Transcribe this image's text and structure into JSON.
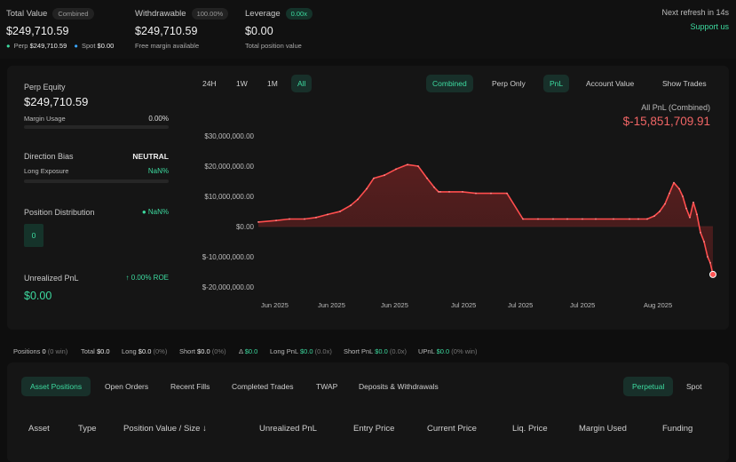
{
  "header": {
    "total_value": {
      "label": "Total Value",
      "pill": "Combined",
      "value": "$249,710.59",
      "perp_label": "Perp",
      "perp_value": "$249,710.59",
      "spot_label": "Spot",
      "spot_value": "$0.00"
    },
    "withdrawable": {
      "label": "Withdrawable",
      "pill": "100.00%",
      "value": "$249,710.59",
      "sub": "Free margin available"
    },
    "leverage": {
      "label": "Leverage",
      "pill": "0.00x",
      "value": "$0.00",
      "sub": "Total position value"
    },
    "refresh": "Next refresh in 14s",
    "support": "Support us"
  },
  "left_panel": {
    "perp_equity_label": "Perp Equity",
    "perp_equity_value": "$249,710.59",
    "margin_usage_label": "Margin Usage",
    "margin_usage_value": "0.00%",
    "direction_bias_label": "Direction Bias",
    "direction_bias_value": "NEUTRAL",
    "long_exposure_label": "Long Exposure",
    "long_exposure_value": "NaN%",
    "position_distribution_label": "Position Distribution",
    "position_distribution_value": "NaN%",
    "position_count": "0",
    "unrealized_pnl_label": "Unrealized PnL",
    "roe": "↑ 0.00% ROE",
    "unrealized_pnl_value": "$0.00"
  },
  "range_tabs": [
    "24H",
    "1W",
    "1M",
    "All"
  ],
  "view_tabs": [
    "Combined",
    "Perp Only"
  ],
  "metric_tabs": [
    "PnL",
    "Account Value",
    "Show Trades"
  ],
  "pnl_summary": {
    "label": "All PnL (Combined)",
    "value": "$-15,851,709.91"
  },
  "chart_data": {
    "type": "area",
    "title": "",
    "ylim": [
      -20000000,
      30000000
    ],
    "y_ticks": [
      "$30,000,000.00",
      "$20,000,000.00",
      "$10,000,000.00",
      "$0.00",
      "$-10,000,000.00",
      "$-20,000,000.00"
    ],
    "x_ticks": [
      "Jun 2025",
      "Jun 2025",
      "Jun 2025",
      "Jul 2025",
      "Jul 2025",
      "Jul 2025",
      "Aug 2025"
    ],
    "x": [
      0,
      20,
      35,
      52,
      65,
      78,
      92,
      104,
      112,
      122,
      130,
      142,
      155,
      168,
      180,
      190,
      198,
      203,
      205,
      215,
      230,
      245,
      262,
      280,
      298,
      315,
      332,
      348,
      365,
      380,
      400,
      418,
      428,
      438,
      446,
      452,
      458,
      463,
      468,
      474,
      478,
      482,
      486,
      490,
      494,
      498,
      502,
      506,
      509,
      512
    ],
    "values": [
      1500000,
      2000000,
      2500000,
      2500000,
      3000000,
      4000000,
      5000000,
      7000000,
      9000000,
      12500000,
      16000000,
      17000000,
      19000000,
      20500000,
      20000000,
      16000000,
      13000000,
      11500000,
      11500000,
      11500000,
      11500000,
      11000000,
      11000000,
      11000000,
      2500000,
      2500000,
      2500000,
      2500000,
      2500000,
      2500000,
      2500000,
      2500000,
      2500000,
      2500000,
      3500000,
      5000000,
      7500000,
      11000000,
      14500000,
      12500000,
      10000000,
      6000000,
      3000000,
      8000000,
      4000000,
      -2000000,
      -5000000,
      -10000000,
      -12000000,
      -15851709.91
    ],
    "line_color": "#ff4d4d",
    "fill_color": "#5c1f1f",
    "grid": false,
    "legend": "none"
  },
  "strip": {
    "positions_label": "Positions",
    "positions_value": "0",
    "positions_win": "(0 win)",
    "total_label": "Total",
    "total_value": "$0.0",
    "long_label": "Long",
    "long_value": "$0.0",
    "long_pct": "(0%)",
    "short_label": "Short",
    "short_value": "$0.0",
    "short_pct": "(0%)",
    "delta_label": "Δ",
    "delta_value": "$0.0",
    "long_pnl_label": "Long PnL",
    "long_pnl_value": "$0.0",
    "long_pnl_x": "(0.0x)",
    "short_pnl_label": "Short PnL",
    "short_pnl_value": "$0.0",
    "short_pnl_x": "(0.0x)",
    "upnl_label": "UPnL",
    "upnl_value": "$0.0",
    "upnl_win": "(0% win)"
  },
  "bottom_tabs": [
    "Asset Positions",
    "Open Orders",
    "Recent Fills",
    "Completed Trades",
    "TWAP",
    "Deposits & Withdrawals"
  ],
  "market_tabs": [
    "Perpetual",
    "Spot"
  ],
  "table_headers": [
    "Asset",
    "Type",
    "Position Value / Size ↓",
    "Unrealized PnL",
    "Entry Price",
    "Current Price",
    "Liq. Price",
    "Margin Used",
    "Funding"
  ]
}
